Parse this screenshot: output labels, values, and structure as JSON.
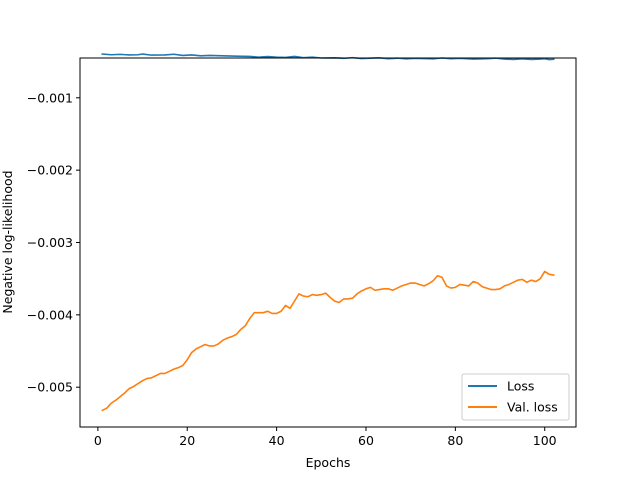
{
  "chart_data": {
    "type": "line",
    "title": "",
    "xlabel": "Epochs",
    "ylabel": "Negative log-likelihood",
    "xlim": [
      -4,
      107
    ],
    "ylim": [
      -0.00555,
      -0.00045
    ],
    "xticks": [
      0,
      20,
      40,
      60,
      80,
      100
    ],
    "xtick_labels": [
      "0",
      "20",
      "40",
      "60",
      "80",
      "100"
    ],
    "yticks": [
      -0.001,
      -0.002,
      -0.003,
      -0.004,
      -0.005
    ],
    "ytick_labels": [
      "−0.001",
      "−0.002",
      "−0.003",
      "−0.004",
      "−0.005"
    ],
    "grid": false,
    "legend_position": "lower-right",
    "series": [
      {
        "name": "Loss",
        "color": "#1f77b4",
        "points": [
          [
            1,
            -0.000395
          ],
          [
            3,
            -0.000405
          ],
          [
            5,
            -0.0004
          ],
          [
            7,
            -0.000408
          ],
          [
            9,
            -0.000405
          ],
          [
            10,
            -0.000395
          ],
          [
            12,
            -0.00041
          ],
          [
            15,
            -0.000408
          ],
          [
            17,
            -0.000398
          ],
          [
            19,
            -0.000415
          ],
          [
            21,
            -0.000408
          ],
          [
            23,
            -0.00042
          ],
          [
            25,
            -0.000415
          ],
          [
            28,
            -0.00042
          ],
          [
            31,
            -0.000425
          ],
          [
            34,
            -0.000428
          ],
          [
            36,
            -0.000438
          ],
          [
            38,
            -0.00043
          ],
          [
            40,
            -0.000438
          ],
          [
            42,
            -0.000442
          ],
          [
            44,
            -0.000428
          ],
          [
            46,
            -0.000445
          ],
          [
            48,
            -0.000438
          ],
          [
            50,
            -0.00045
          ],
          [
            53,
            -0.000448
          ],
          [
            55,
            -0.000455
          ],
          [
            57,
            -0.000445
          ],
          [
            59,
            -0.000458
          ],
          [
            61,
            -0.000452
          ],
          [
            63,
            -0.000448
          ],
          [
            65,
            -0.00046
          ],
          [
            67,
            -0.000452
          ],
          [
            69,
            -0.000462
          ],
          [
            71,
            -0.000455
          ],
          [
            73,
            -0.000458
          ],
          [
            75,
            -0.000462
          ],
          [
            77,
            -0.00045
          ],
          [
            79,
            -0.00046
          ],
          [
            81,
            -0.000455
          ],
          [
            84,
            -0.000465
          ],
          [
            87,
            -0.00046
          ],
          [
            89,
            -0.000452
          ],
          [
            91,
            -0.000465
          ],
          [
            93,
            -0.00047
          ],
          [
            95,
            -0.000462
          ],
          [
            97,
            -0.00047
          ],
          [
            99,
            -0.000465
          ],
          [
            100,
            -0.00046
          ],
          [
            101,
            -0.000472
          ],
          [
            102,
            -0.000468
          ]
        ]
      },
      {
        "name": "Val. loss",
        "color": "#ff7f0e",
        "points": [
          [
            1,
            -0.00532
          ],
          [
            2,
            -0.00529
          ],
          [
            3,
            -0.00522
          ],
          [
            4,
            -0.00518
          ],
          [
            5,
            -0.00513
          ],
          [
            6,
            -0.00508
          ],
          [
            7,
            -0.00502
          ],
          [
            8,
            -0.00499
          ],
          [
            9,
            -0.00495
          ],
          [
            10,
            -0.00491
          ],
          [
            11,
            -0.00488
          ],
          [
            12,
            -0.00487
          ],
          [
            13,
            -0.00484
          ],
          [
            14,
            -0.00481
          ],
          [
            15,
            -0.00481
          ],
          [
            16,
            -0.00478
          ],
          [
            17,
            -0.00475
          ],
          [
            18,
            -0.00473
          ],
          [
            19,
            -0.0047
          ],
          [
            20,
            -0.00462
          ],
          [
            21,
            -0.00452
          ],
          [
            22,
            -0.00447
          ],
          [
            23,
            -0.00444
          ],
          [
            24,
            -0.00441
          ],
          [
            25,
            -0.00443
          ],
          [
            26,
            -0.00443
          ],
          [
            27,
            -0.0044
          ],
          [
            28,
            -0.00435
          ],
          [
            29,
            -0.00432
          ],
          [
            30,
            -0.0043
          ],
          [
            31,
            -0.00427
          ],
          [
            32,
            -0.0042
          ],
          [
            33,
            -0.00415
          ],
          [
            34,
            -0.00405
          ],
          [
            35,
            -0.00397
          ],
          [
            36,
            -0.00397
          ],
          [
            37,
            -0.00397
          ],
          [
            38,
            -0.00395
          ],
          [
            39,
            -0.00398
          ],
          [
            40,
            -0.00398
          ],
          [
            41,
            -0.00395
          ],
          [
            42,
            -0.00387
          ],
          [
            43,
            -0.00391
          ],
          [
            44,
            -0.00381
          ],
          [
            45,
            -0.00371
          ],
          [
            46,
            -0.00374
          ],
          [
            47,
            -0.00375
          ],
          [
            48,
            -0.00372
          ],
          [
            49,
            -0.00373
          ],
          [
            50,
            -0.00372
          ],
          [
            51,
            -0.0037
          ],
          [
            52,
            -0.00376
          ],
          [
            53,
            -0.00381
          ],
          [
            54,
            -0.00383
          ],
          [
            55,
            -0.00378
          ],
          [
            56,
            -0.00378
          ],
          [
            57,
            -0.00377
          ],
          [
            58,
            -0.00371
          ],
          [
            59,
            -0.00367
          ],
          [
            60,
            -0.00364
          ],
          [
            61,
            -0.00362
          ],
          [
            62,
            -0.00366
          ],
          [
            63,
            -0.00365
          ],
          [
            64,
            -0.00364
          ],
          [
            65,
            -0.00364
          ],
          [
            66,
            -0.00366
          ],
          [
            67,
            -0.00363
          ],
          [
            68,
            -0.0036
          ],
          [
            69,
            -0.00358
          ],
          [
            70,
            -0.00356
          ],
          [
            71,
            -0.00356
          ],
          [
            72,
            -0.00358
          ],
          [
            73,
            -0.0036
          ],
          [
            74,
            -0.00357
          ],
          [
            75,
            -0.00353
          ],
          [
            76,
            -0.00346
          ],
          [
            77,
            -0.00348
          ],
          [
            78,
            -0.0036
          ],
          [
            79,
            -0.00363
          ],
          [
            80,
            -0.00362
          ],
          [
            81,
            -0.00358
          ],
          [
            82,
            -0.00359
          ],
          [
            83,
            -0.0036
          ],
          [
            84,
            -0.00354
          ],
          [
            85,
            -0.00356
          ],
          [
            86,
            -0.00361
          ],
          [
            87,
            -0.00363
          ],
          [
            88,
            -0.00365
          ],
          [
            89,
            -0.00365
          ],
          [
            90,
            -0.00364
          ],
          [
            91,
            -0.0036
          ],
          [
            92,
            -0.00358
          ],
          [
            93,
            -0.00355
          ],
          [
            94,
            -0.00352
          ],
          [
            95,
            -0.00351
          ],
          [
            96,
            -0.00355
          ],
          [
            97,
            -0.00352
          ],
          [
            98,
            -0.00354
          ],
          [
            99,
            -0.0035
          ],
          [
            100,
            -0.0034
          ],
          [
            101,
            -0.00344
          ],
          [
            102,
            -0.00345
          ]
        ]
      }
    ]
  }
}
